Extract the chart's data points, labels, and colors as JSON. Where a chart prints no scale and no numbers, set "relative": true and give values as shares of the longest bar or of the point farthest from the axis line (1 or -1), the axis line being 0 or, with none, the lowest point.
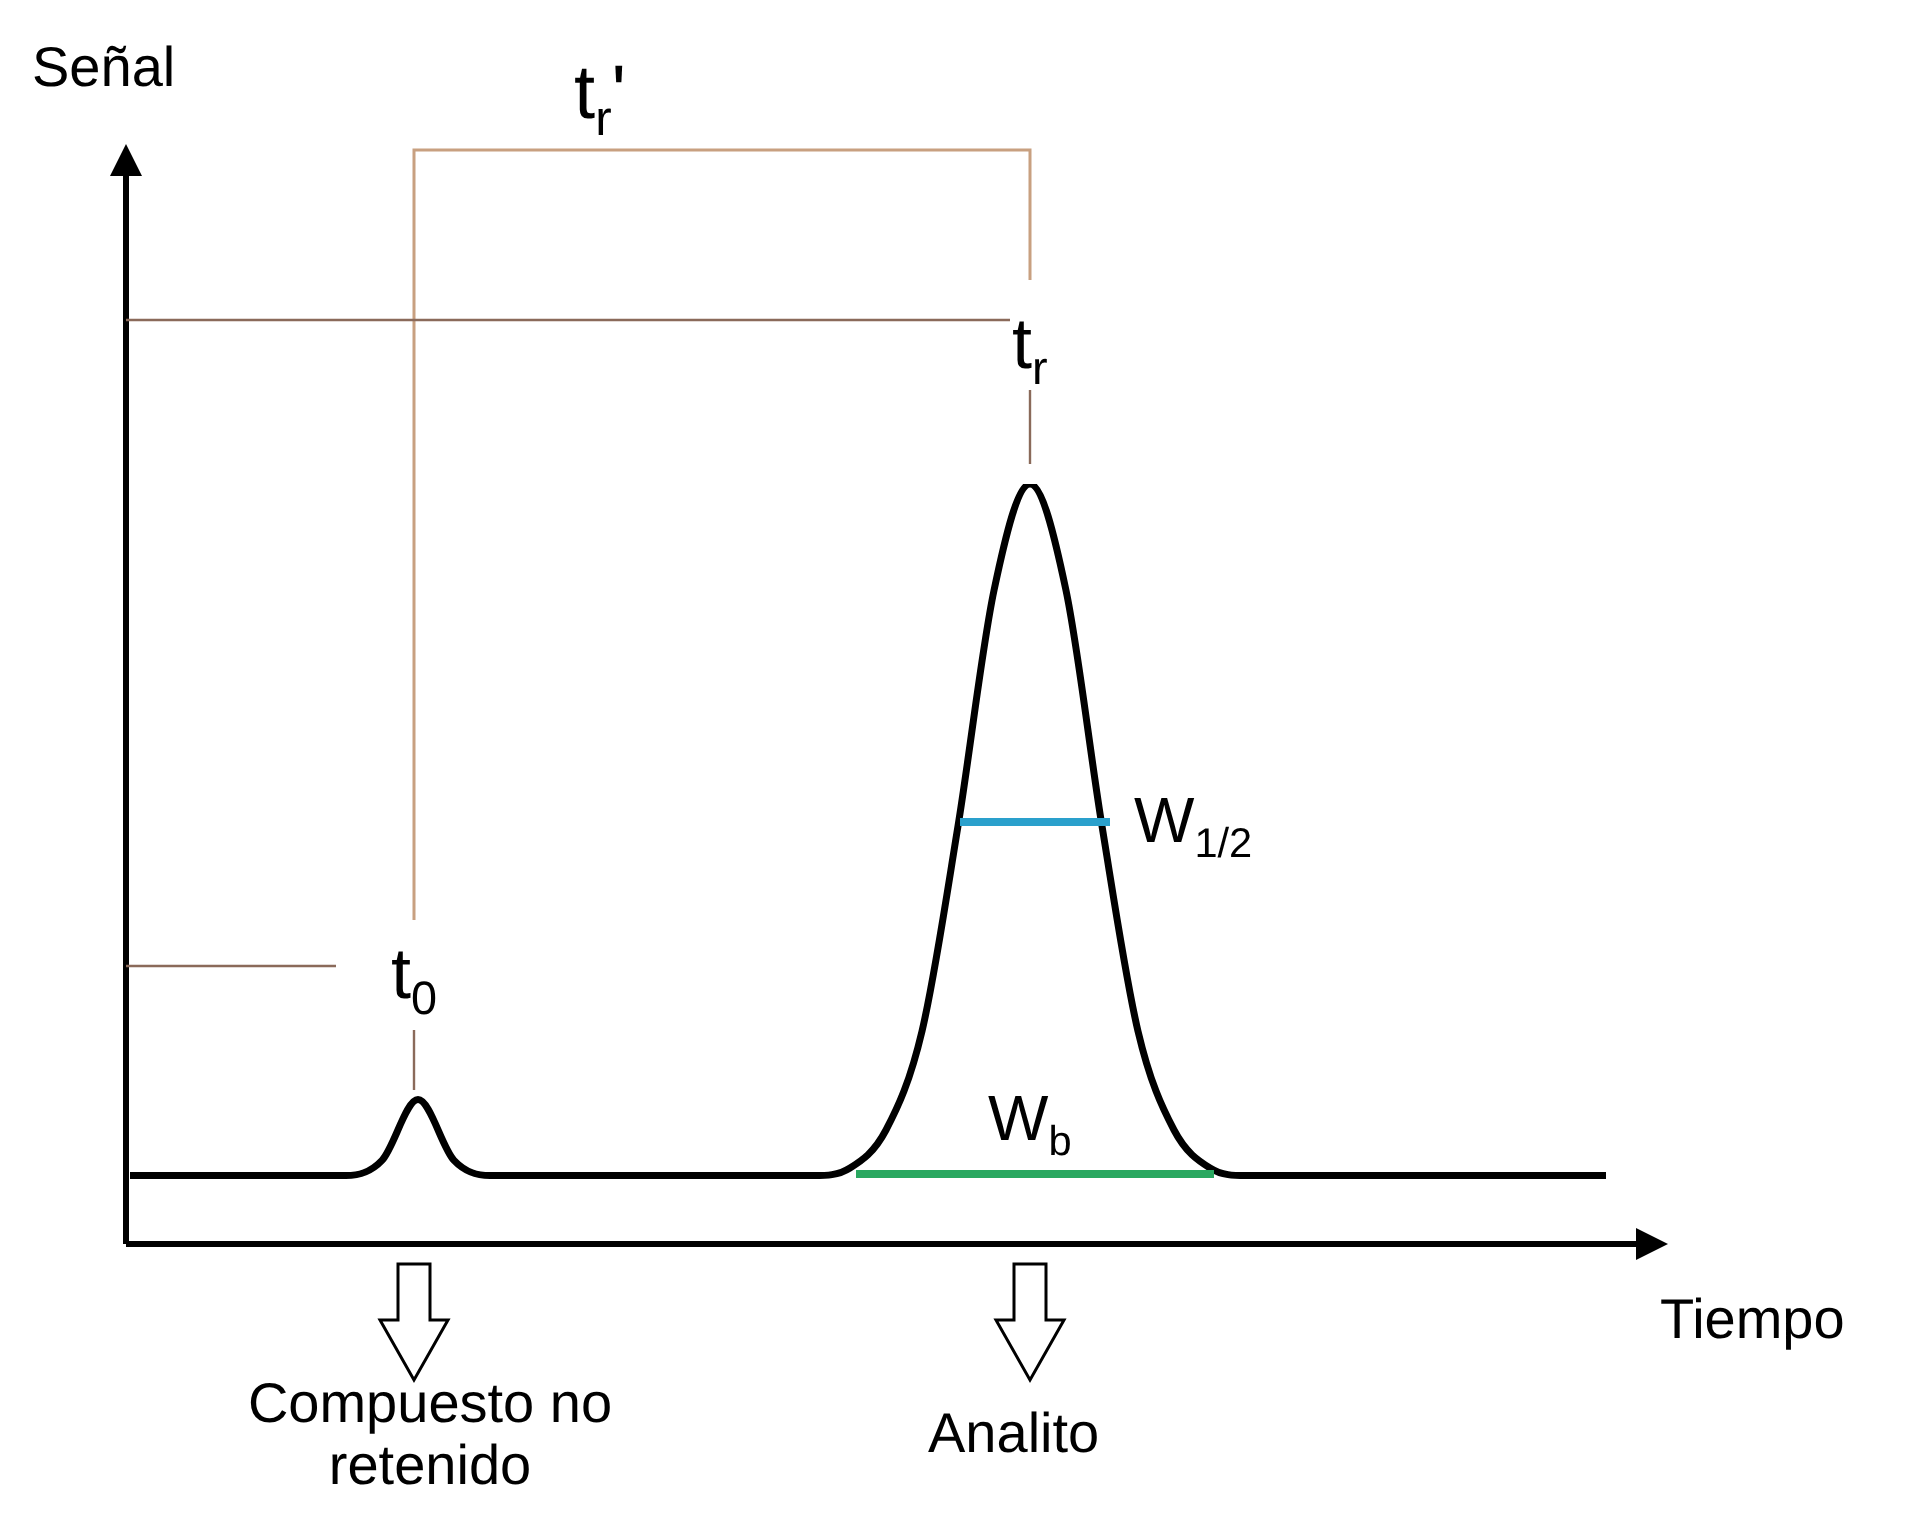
{
  "chart_data": {
    "type": "line",
    "relative": true,
    "xlabel": "Tiempo",
    "categories": [
      null,
      null,
      null,
      null,
      null,
      null,
      null,
      null,
      null,
      null,
      null,
      null,
      null,
      null,
      null,
      null,
      null,
      null,
      null,
      null,
      null,
      null,
      null,
      null,
      null,
      null,
      null,
      null,
      null,
      null,
      null,
      null,
      null,
      null,
      null,
      null,
      null,
      null,
      null,
      null,
      null,
      null
    ],
    "series": [
      {
        "color": "#000000",
        "values": [
          0.09,
          0.09,
          0.09,
          0.09,
          0.09,
          0.09,
          0.09,
          0.11,
          0.19,
          0.11,
          0.09,
          0.09,
          0.09,
          0.09,
          0.09,
          0.09,
          0.09,
          0.09,
          0.09,
          0.09,
          0.1,
          0.15,
          0.28,
          0.55,
          0.86,
          1,
          0.86,
          0.55,
          0.28,
          0.15,
          0.1,
          0.09,
          0.09,
          0.09,
          0.09,
          0.09,
          0.09,
          0.09,
          0.09,
          0.09,
          0.09,
          0.09
        ]
      }
    ],
    "annotations": [
      "t$_{r}$'",
      "t$_{r}$",
      "t$_{0}$",
      "W$_{1/2}$",
      "W$_{b}$",
      "Compuesto no retenido",
      "Analito",
      "Señal"
    ],
    "marker": "none",
    "line_style": "solid",
    "grid": false,
    "legend": false
  }
}
